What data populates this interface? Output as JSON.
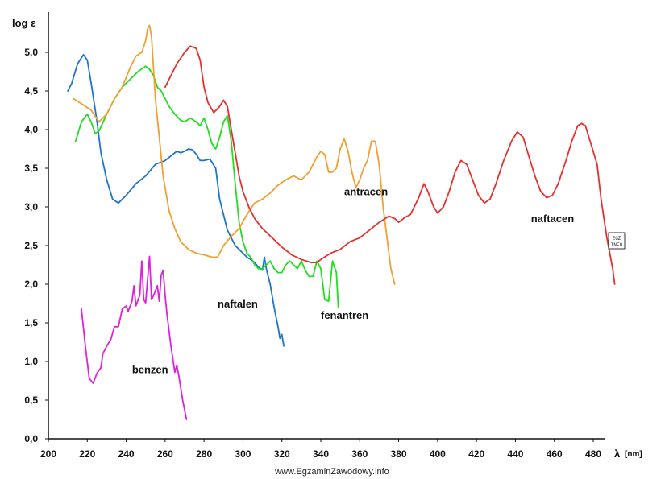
{
  "chart_data": {
    "type": "line",
    "title": "",
    "xlabel": "λ",
    "xunit": "[nm]",
    "ylabel": "log ε",
    "xlim": [
      200,
      490
    ],
    "ylim": [
      0,
      5.5
    ],
    "x_ticks": [
      200,
      220,
      240,
      260,
      280,
      300,
      320,
      340,
      360,
      380,
      400,
      420,
      440,
      460,
      480
    ],
    "y_ticks": [
      {
        "value": 0.0,
        "label": "0,0"
      },
      {
        "value": 0.5,
        "label": "0,5"
      },
      {
        "value": 1.0,
        "label": "1,0"
      },
      {
        "value": 1.5,
        "label": "1,5"
      },
      {
        "value": 2.0,
        "label": "2,0"
      },
      {
        "value": 2.5,
        "label": "2,5"
      },
      {
        "value": 3.0,
        "label": "3,0"
      },
      {
        "value": 3.5,
        "label": "3,5"
      },
      {
        "value": 4.0,
        "label": "4,0"
      },
      {
        "value": 4.5,
        "label": "4,5"
      },
      {
        "value": 5.0,
        "label": "5,0"
      }
    ],
    "grid": false,
    "series": [
      {
        "name": "benzen",
        "color": "#e020e0",
        "label_at": [
          243,
          0.85
        ],
        "points": [
          [
            217,
            1.68
          ],
          [
            219,
            1.2
          ],
          [
            221,
            0.78
          ],
          [
            223,
            0.72
          ],
          [
            225,
            0.85
          ],
          [
            227,
            0.92
          ],
          [
            228,
            1.1
          ],
          [
            230,
            1.2
          ],
          [
            232,
            1.28
          ],
          [
            234,
            1.45
          ],
          [
            236,
            1.45
          ],
          [
            238,
            1.68
          ],
          [
            240,
            1.72
          ],
          [
            241,
            1.65
          ],
          [
            243,
            1.78
          ],
          [
            244,
            1.98
          ],
          [
            245,
            1.72
          ],
          [
            247,
            1.86
          ],
          [
            248,
            2.3
          ],
          [
            249,
            1.8
          ],
          [
            250,
            1.76
          ],
          [
            252,
            2.36
          ],
          [
            253,
            1.8
          ],
          [
            254,
            1.85
          ],
          [
            256,
            1.98
          ],
          [
            257,
            1.78
          ],
          [
            258,
            2.12
          ],
          [
            259,
            2.18
          ],
          [
            260,
            1.85
          ],
          [
            261,
            1.6
          ],
          [
            263,
            1.2
          ],
          [
            265,
            0.86
          ],
          [
            266,
            0.95
          ],
          [
            267,
            0.82
          ],
          [
            269,
            0.5
          ],
          [
            271,
            0.25
          ]
        ]
      },
      {
        "name": "naftalen",
        "color": "#1e73d0",
        "label_at": [
          287,
          1.7
        ],
        "points": [
          [
            210,
            4.5
          ],
          [
            212,
            4.6
          ],
          [
            215,
            4.85
          ],
          [
            218,
            4.97
          ],
          [
            220,
            4.9
          ],
          [
            222,
            4.6
          ],
          [
            225,
            4.1
          ],
          [
            227,
            3.7
          ],
          [
            230,
            3.35
          ],
          [
            233,
            3.1
          ],
          [
            236,
            3.05
          ],
          [
            240,
            3.15
          ],
          [
            245,
            3.3
          ],
          [
            250,
            3.4
          ],
          [
            255,
            3.55
          ],
          [
            260,
            3.6
          ],
          [
            264,
            3.68
          ],
          [
            266,
            3.72
          ],
          [
            268,
            3.7
          ],
          [
            270,
            3.72
          ],
          [
            272,
            3.75
          ],
          [
            274,
            3.74
          ],
          [
            276,
            3.68
          ],
          [
            278,
            3.6
          ],
          [
            280,
            3.6
          ],
          [
            283,
            3.62
          ],
          [
            286,
            3.5
          ],
          [
            288,
            3.1
          ],
          [
            290,
            2.9
          ],
          [
            292,
            2.7
          ],
          [
            294,
            2.6
          ],
          [
            296,
            2.5
          ],
          [
            298,
            2.45
          ],
          [
            300,
            2.4
          ],
          [
            302,
            2.35
          ],
          [
            304,
            2.32
          ],
          [
            306,
            2.28
          ],
          [
            308,
            2.22
          ],
          [
            310,
            2.18
          ],
          [
            311,
            2.35
          ],
          [
            312,
            2.2
          ],
          [
            314,
            2.0
          ],
          [
            316,
            1.7
          ],
          [
            318,
            1.45
          ],
          [
            319,
            1.3
          ],
          [
            320,
            1.35
          ],
          [
            321,
            1.2
          ]
        ]
      },
      {
        "name": "fenantren",
        "color": "#22dd22",
        "label_at": [
          340,
          1.55
        ],
        "points": [
          [
            214,
            3.85
          ],
          [
            217,
            4.1
          ],
          [
            220,
            4.2
          ],
          [
            222,
            4.1
          ],
          [
            224,
            3.95
          ],
          [
            226,
            3.98
          ],
          [
            230,
            4.2
          ],
          [
            234,
            4.4
          ],
          [
            238,
            4.55
          ],
          [
            242,
            4.65
          ],
          [
            246,
            4.75
          ],
          [
            250,
            4.82
          ],
          [
            252,
            4.78
          ],
          [
            254,
            4.7
          ],
          [
            256,
            4.55
          ],
          [
            258,
            4.5
          ],
          [
            260,
            4.4
          ],
          [
            262,
            4.3
          ],
          [
            265,
            4.2
          ],
          [
            268,
            4.12
          ],
          [
            270,
            4.1
          ],
          [
            273,
            4.15
          ],
          [
            276,
            4.1
          ],
          [
            278,
            4.05
          ],
          [
            280,
            4.15
          ],
          [
            282,
            4.0
          ],
          [
            284,
            3.82
          ],
          [
            286,
            3.75
          ],
          [
            288,
            3.9
          ],
          [
            290,
            4.1
          ],
          [
            292,
            4.18
          ],
          [
            294,
            3.85
          ],
          [
            296,
            3.3
          ],
          [
            298,
            2.8
          ],
          [
            300,
            2.55
          ],
          [
            302,
            2.4
          ],
          [
            304,
            2.35
          ],
          [
            306,
            2.25
          ],
          [
            308,
            2.2
          ],
          [
            310,
            2.2
          ],
          [
            312,
            2.25
          ],
          [
            314,
            2.3
          ],
          [
            316,
            2.2
          ],
          [
            318,
            2.15
          ],
          [
            320,
            2.15
          ],
          [
            322,
            2.25
          ],
          [
            324,
            2.3
          ],
          [
            326,
            2.25
          ],
          [
            328,
            2.2
          ],
          [
            330,
            2.3
          ],
          [
            332,
            2.18
          ],
          [
            334,
            2.1
          ],
          [
            336,
            2.1
          ],
          [
            338,
            2.3
          ],
          [
            340,
            2.2
          ],
          [
            342,
            1.8
          ],
          [
            344,
            1.78
          ],
          [
            346,
            2.3
          ],
          [
            348,
            2.15
          ],
          [
            349,
            1.7
          ]
        ]
      },
      {
        "name": "antracen",
        "color": "#f0a030",
        "label_at": [
          352,
          3.15
        ],
        "points": [
          [
            213,
            4.4
          ],
          [
            216,
            4.35
          ],
          [
            218,
            4.32
          ],
          [
            222,
            4.25
          ],
          [
            226,
            4.1
          ],
          [
            230,
            4.2
          ],
          [
            234,
            4.4
          ],
          [
            238,
            4.55
          ],
          [
            242,
            4.8
          ],
          [
            245,
            4.95
          ],
          [
            248,
            5.0
          ],
          [
            250,
            5.15
          ],
          [
            251,
            5.3
          ],
          [
            252,
            5.35
          ],
          [
            253,
            5.2
          ],
          [
            255,
            4.4
          ],
          [
            257,
            3.9
          ],
          [
            259,
            3.4
          ],
          [
            262,
            2.95
          ],
          [
            265,
            2.72
          ],
          [
            268,
            2.55
          ],
          [
            272,
            2.45
          ],
          [
            276,
            2.4
          ],
          [
            280,
            2.38
          ],
          [
            284,
            2.35
          ],
          [
            287,
            2.35
          ],
          [
            290,
            2.5
          ],
          [
            294,
            2.62
          ],
          [
            298,
            2.72
          ],
          [
            302,
            2.9
          ],
          [
            306,
            3.05
          ],
          [
            310,
            3.1
          ],
          [
            314,
            3.18
          ],
          [
            318,
            3.28
          ],
          [
            322,
            3.35
          ],
          [
            326,
            3.4
          ],
          [
            330,
            3.35
          ],
          [
            334,
            3.45
          ],
          [
            338,
            3.65
          ],
          [
            340,
            3.72
          ],
          [
            342,
            3.68
          ],
          [
            344,
            3.45
          ],
          [
            346,
            3.45
          ],
          [
            348,
            3.5
          ],
          [
            350,
            3.75
          ],
          [
            352,
            3.88
          ],
          [
            354,
            3.72
          ],
          [
            356,
            3.45
          ],
          [
            358,
            3.25
          ],
          [
            360,
            3.35
          ],
          [
            362,
            3.5
          ],
          [
            364,
            3.6
          ],
          [
            366,
            3.85
          ],
          [
            368,
            3.85
          ],
          [
            370,
            3.55
          ],
          [
            372,
            3.0
          ],
          [
            374,
            2.6
          ],
          [
            376,
            2.2
          ],
          [
            378,
            2.0
          ]
        ]
      },
      {
        "name": "naftacen",
        "color": "#e63030",
        "label_at": [
          448,
          2.8
        ],
        "points": [
          [
            260,
            4.55
          ],
          [
            263,
            4.7
          ],
          [
            266,
            4.85
          ],
          [
            270,
            5.0
          ],
          [
            273,
            5.08
          ],
          [
            276,
            5.05
          ],
          [
            278,
            4.9
          ],
          [
            280,
            4.55
          ],
          [
            282,
            4.35
          ],
          [
            285,
            4.22
          ],
          [
            288,
            4.3
          ],
          [
            290,
            4.38
          ],
          [
            292,
            4.3
          ],
          [
            294,
            4.0
          ],
          [
            296,
            3.7
          ],
          [
            298,
            3.4
          ],
          [
            300,
            3.2
          ],
          [
            303,
            3.0
          ],
          [
            306,
            2.85
          ],
          [
            310,
            2.72
          ],
          [
            315,
            2.6
          ],
          [
            320,
            2.48
          ],
          [
            325,
            2.38
          ],
          [
            330,
            2.32
          ],
          [
            335,
            2.28
          ],
          [
            338,
            2.28
          ],
          [
            340,
            2.32
          ],
          [
            345,
            2.4
          ],
          [
            350,
            2.45
          ],
          [
            355,
            2.55
          ],
          [
            360,
            2.6
          ],
          [
            365,
            2.7
          ],
          [
            370,
            2.8
          ],
          [
            375,
            2.88
          ],
          [
            378,
            2.85
          ],
          [
            380,
            2.8
          ],
          [
            383,
            2.86
          ],
          [
            386,
            2.9
          ],
          [
            390,
            3.1
          ],
          [
            393,
            3.3
          ],
          [
            395,
            3.2
          ],
          [
            398,
            3.0
          ],
          [
            400,
            2.92
          ],
          [
            403,
            3.0
          ],
          [
            406,
            3.2
          ],
          [
            409,
            3.45
          ],
          [
            412,
            3.6
          ],
          [
            415,
            3.55
          ],
          [
            418,
            3.35
          ],
          [
            421,
            3.15
          ],
          [
            424,
            3.05
          ],
          [
            427,
            3.1
          ],
          [
            430,
            3.3
          ],
          [
            434,
            3.6
          ],
          [
            438,
            3.85
          ],
          [
            441,
            3.97
          ],
          [
            444,
            3.9
          ],
          [
            447,
            3.65
          ],
          [
            450,
            3.4
          ],
          [
            453,
            3.2
          ],
          [
            456,
            3.12
          ],
          [
            459,
            3.15
          ],
          [
            462,
            3.3
          ],
          [
            466,
            3.6
          ],
          [
            469,
            3.85
          ],
          [
            472,
            4.05
          ],
          [
            474,
            4.08
          ],
          [
            476,
            4.05
          ],
          [
            479,
            3.8
          ],
          [
            482,
            3.55
          ],
          [
            484,
            3.1
          ],
          [
            487,
            2.6
          ],
          [
            490,
            2.2
          ],
          [
            491,
            2.0
          ]
        ]
      }
    ]
  },
  "badge": {
    "line1": "EGZ",
    "line2": "INFO"
  },
  "footer_text": "www.EgzaminZawodowy.info"
}
